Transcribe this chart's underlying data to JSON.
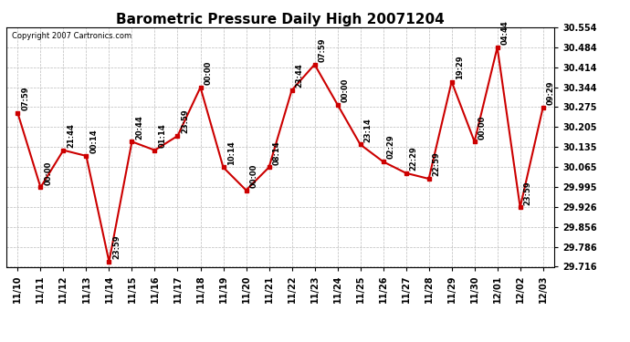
{
  "title": "Barometric Pressure Daily High 20071204",
  "copyright": "Copyright 2007 Cartronics.com",
  "x_labels": [
    "11/10",
    "11/11",
    "11/12",
    "11/13",
    "11/14",
    "11/15",
    "11/16",
    "11/17",
    "11/18",
    "11/19",
    "11/20",
    "11/21",
    "11/22",
    "11/23",
    "11/24",
    "11/25",
    "11/26",
    "11/27",
    "11/28",
    "11/29",
    "11/30",
    "12/01",
    "12/02",
    "12/03"
  ],
  "y_values": [
    30.254,
    29.994,
    30.124,
    30.104,
    29.734,
    30.154,
    30.124,
    30.174,
    30.344,
    30.064,
    29.984,
    30.064,
    30.334,
    30.424,
    30.284,
    30.144,
    30.084,
    30.044,
    30.024,
    30.364,
    30.154,
    30.484,
    29.924,
    30.274
  ],
  "point_labels": [
    "07:59",
    "00:00",
    "21:44",
    "00:14",
    "23:59",
    "20:44",
    "01:14",
    "23:59",
    "00:00",
    "10:14",
    "00:00",
    "08:14",
    "23:44",
    "07:59",
    "00:00",
    "23:14",
    "02:29",
    "22:29",
    "22:59",
    "19:29",
    "00:00",
    "04:44",
    "23:59",
    "09:29"
  ],
  "y_ticks": [
    29.716,
    29.786,
    29.856,
    29.926,
    29.995,
    30.065,
    30.135,
    30.205,
    30.275,
    30.344,
    30.414,
    30.484,
    30.554
  ],
  "y_min": 29.716,
  "y_max": 30.554,
  "line_color": "#cc0000",
  "marker_color": "#cc0000",
  "background_color": "#ffffff",
  "grid_color": "#bbbbbb",
  "title_fontsize": 11,
  "tick_fontsize": 7,
  "label_fontsize": 6
}
